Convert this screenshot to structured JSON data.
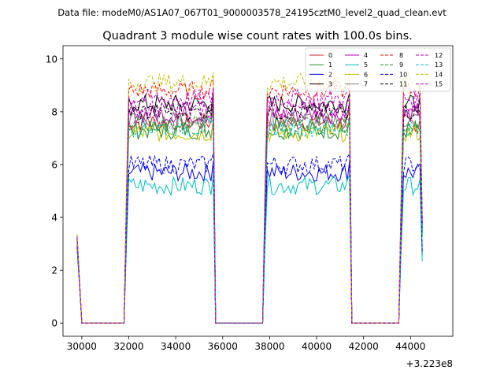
{
  "suptitle": "Data file: modeM0/AS1A07_067T01_9000003578_24195cztM0_level2_quad_clean.evt",
  "chart_data": {
    "type": "line",
    "title": "Quadrant 3 module wise count rates with 100.0s bins.",
    "xlabel": "",
    "ylabel": "",
    "x_offset_label": "+3.223e8",
    "xlim": [
      29200,
      45800
    ],
    "ylim": [
      -0.5,
      10.5
    ],
    "x_ticks": [
      30000,
      32000,
      34000,
      36000,
      38000,
      40000,
      42000,
      44000
    ],
    "x_tick_labels": [
      "30000",
      "32000",
      "34000",
      "36000",
      "38000",
      "40000",
      "42000",
      "44000"
    ],
    "y_ticks": [
      0,
      2,
      4,
      6,
      8,
      10
    ],
    "y_tick_labels": [
      "0",
      "2",
      "4",
      "6",
      "8",
      "10"
    ],
    "legend": {
      "location": "upper-right",
      "columns": 4
    },
    "segments": [
      {
        "start": 29800,
        "end": 29900,
        "on": true
      },
      {
        "start": 30000,
        "end": 31800,
        "on": false
      },
      {
        "start": 31900,
        "end": 35600,
        "on": true
      },
      {
        "start": 35700,
        "end": 37700,
        "on": false
      },
      {
        "start": 37800,
        "end": 41400,
        "on": true
      },
      {
        "start": 41500,
        "end": 43500,
        "on": false
      },
      {
        "start": 43600,
        "end": 44500,
        "on": true
      }
    ],
    "bin_seconds": 100,
    "series": [
      {
        "name": "0",
        "color": "#d62728",
        "dash": "solid",
        "level": 7.6
      },
      {
        "name": "1",
        "color": "#228b22",
        "dash": "solid",
        "level": 7.3
      },
      {
        "name": "2",
        "color": "#0000ee",
        "dash": "solid",
        "level": 5.7
      },
      {
        "name": "3",
        "color": "#000000",
        "dash": "solid",
        "level": 8.3
      },
      {
        "name": "4",
        "color": "#bf00bf",
        "dash": "solid",
        "level": 7.9
      },
      {
        "name": "5",
        "color": "#00bfbf",
        "dash": "solid",
        "level": 5.2
      },
      {
        "name": "6",
        "color": "#bfbf00",
        "dash": "solid",
        "level": 7.2
      },
      {
        "name": "7",
        "color": "#7f7f7f",
        "dash": "solid",
        "level": 7.7
      },
      {
        "name": "8",
        "color": "#ff0000",
        "dash": "dashed",
        "level": 8.8
      },
      {
        "name": "9",
        "color": "#228b22",
        "dash": "dashed",
        "level": 7.5
      },
      {
        "name": "10",
        "color": "#0000ee",
        "dash": "dashed",
        "level": 6.0
      },
      {
        "name": "11",
        "color": "#000000",
        "dash": "dashed",
        "level": 8.0
      },
      {
        "name": "12",
        "color": "#bf00bf",
        "dash": "dashed",
        "level": 8.1
      },
      {
        "name": "13",
        "color": "#00bfbf",
        "dash": "dashed",
        "level": 7.4
      },
      {
        "name": "14",
        "color": "#bfbf00",
        "dash": "dashed",
        "level": 9.1
      },
      {
        "name": "15",
        "color": "#bf00bf",
        "dash": "dashed",
        "level": 8.5
      }
    ]
  }
}
